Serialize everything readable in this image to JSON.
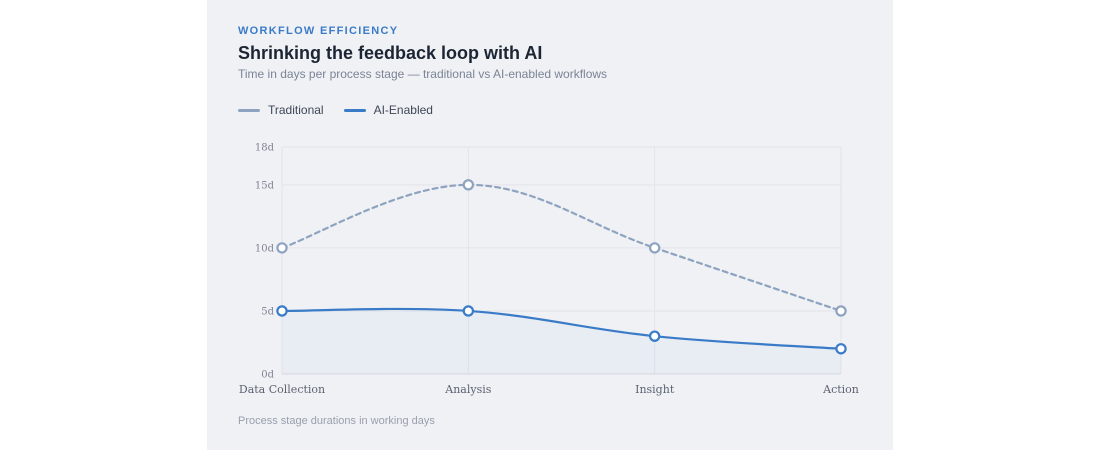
{
  "header": {
    "eyebrow": "WORKFLOW EFFICIENCY",
    "title": "Shrinking the feedback loop with AI",
    "subtitle": "Time in days per process stage — traditional vs AI-enabled workflows"
  },
  "legend": {
    "items": [
      {
        "label": "Traditional",
        "color": "#8ea3bf"
      },
      {
        "label": "AI-Enabled",
        "color": "#3a7bc8"
      }
    ]
  },
  "footnote": "Process stage durations in working days",
  "chart_data": {
    "type": "line",
    "title": "Shrinking the feedback loop with AI",
    "categories": [
      "Data Collection",
      "Analysis",
      "Insight",
      "Action"
    ],
    "ylim": [
      0,
      18
    ],
    "yticks": [
      0,
      5,
      10,
      15,
      18
    ],
    "ytick_labels": [
      "0d",
      "5d",
      "10d",
      "15d",
      "18d"
    ],
    "grid": true,
    "legend_position": "top-left",
    "series": [
      {
        "name": "Traditional",
        "values": [
          10,
          15,
          10,
          5
        ],
        "color": "#8ea3bf",
        "style": "dashed"
      },
      {
        "name": "AI-Enabled",
        "values": [
          5,
          5,
          3,
          2
        ],
        "color": "#3a7bc8",
        "style": "solid"
      }
    ]
  }
}
